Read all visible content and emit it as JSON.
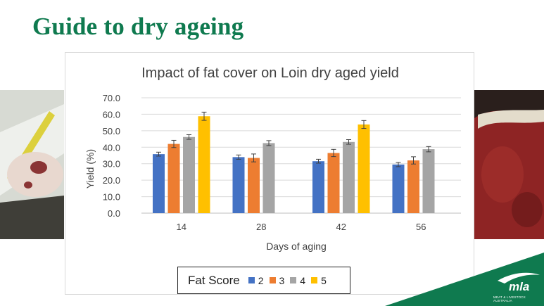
{
  "slide": {
    "title": "Guide to dry ageing",
    "logo_text": "mla",
    "logo_subtext": "MEAT & LIVESTOCK AUSTRALIA",
    "brand_color": "#0f7a4f"
  },
  "chart_data": {
    "type": "bar",
    "title": "Impact of  fat cover on Loin dry aged yield",
    "xlabel": "Days of aging",
    "ylabel": "Yield (%)",
    "ylim": [
      0,
      70
    ],
    "y_ticks": [
      "0.0",
      "10.0",
      "20.0",
      "30.0",
      "40.0",
      "50.0",
      "60.0",
      "70.0"
    ],
    "categories": [
      "14",
      "28",
      "42",
      "56"
    ],
    "grid": true,
    "legend_title": "Fat Score",
    "legend_position": "bottom",
    "series": [
      {
        "name": "2",
        "color": "#4472c4",
        "values": [
          35.8,
          34.0,
          31.5,
          29.5
        ],
        "errors": [
          1.2,
          1.3,
          1.2,
          1.3
        ]
      },
      {
        "name": "3",
        "color": "#ed7d31",
        "values": [
          42.0,
          33.5,
          36.5,
          32.0
        ],
        "errors": [
          2.2,
          2.4,
          2.2,
          2.2
        ]
      },
      {
        "name": "4",
        "color": "#a5a5a5",
        "values": [
          46.2,
          42.5,
          43.2,
          38.8
        ],
        "errors": [
          1.4,
          1.5,
          1.4,
          1.6
        ]
      },
      {
        "name": "5",
        "color": "#ffc000",
        "values": [
          58.8,
          null,
          53.8,
          null
        ],
        "errors": [
          2.5,
          null,
          2.4,
          null
        ]
      }
    ]
  }
}
